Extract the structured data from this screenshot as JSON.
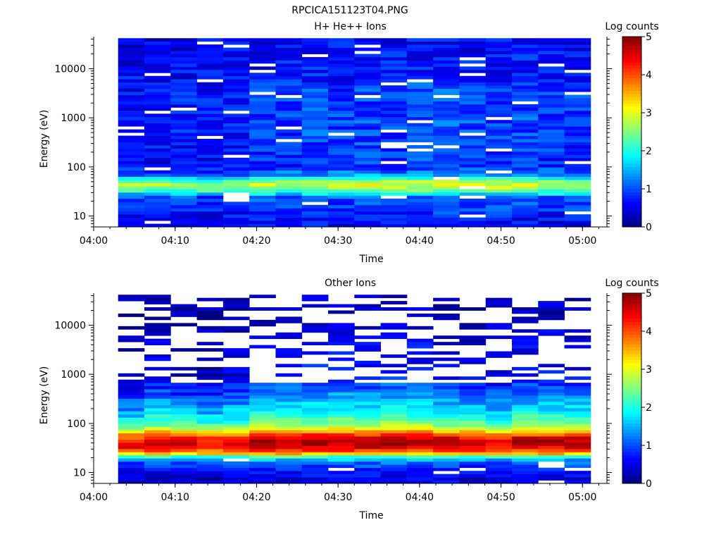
{
  "figure_title": "RPCICA151123T04.PNG",
  "chart_data": [
    {
      "type": "heatmap",
      "title": "H+ He++ Ions",
      "xlabel": "Time",
      "ylabel": "Energy (eV)",
      "yscale": "log",
      "ylim": [
        6,
        45000
      ],
      "xlim": [
        "04:00",
        "05:03"
      ],
      "x_ticks": [
        "04:00",
        "04:10",
        "04:20",
        "04:30",
        "04:40",
        "04:50",
        "05:00"
      ],
      "y_ticks": [
        "10",
        "100",
        "1000",
        "10000"
      ],
      "data_start": "04:03",
      "data_end": "05:01",
      "time_bins": 18,
      "energy_bins": 60,
      "colorbar": {
        "label": "Log counts",
        "min": 0,
        "max": 5,
        "ticks": [
          "0",
          "1",
          "2",
          "3",
          "4",
          "5"
        ]
      },
      "profile": [
        {
          "energy_eV": 8,
          "log_counts": 0.5
        },
        {
          "energy_eV": 15,
          "log_counts": 0.8
        },
        {
          "energy_eV": 25,
          "log_counts": 1.0
        },
        {
          "energy_eV": 30,
          "log_counts": 1.9
        },
        {
          "energy_eV": 40,
          "log_counts": 2.8
        },
        {
          "energy_eV": 50,
          "log_counts": 2.4
        },
        {
          "energy_eV": 65,
          "log_counts": 1.2
        },
        {
          "energy_eV": 100,
          "log_counts": 0.6
        },
        {
          "energy_eV": 1000,
          "log_counts": 0.7
        },
        {
          "energy_eV": 10000,
          "log_counts": 0.6
        },
        {
          "energy_eV": 40000,
          "log_counts": 0.5
        }
      ],
      "time_variation": [
        0.0,
        0.0,
        0.05,
        0.0,
        0.05,
        0.2,
        0.25,
        0.3,
        0.25,
        0.3,
        0.25,
        0.3,
        0.35,
        0.3,
        0.25,
        0.3,
        0.25,
        0.2
      ],
      "noise": 0.35,
      "empty_fraction": 0.04
    },
    {
      "type": "heatmap",
      "title": "Other Ions",
      "xlabel": "Time",
      "ylabel": "Energy (eV)",
      "yscale": "log",
      "ylim": [
        6,
        45000
      ],
      "xlim": [
        "04:00",
        "05:03"
      ],
      "x_ticks": [
        "04:00",
        "04:10",
        "04:20",
        "04:30",
        "04:40",
        "04:50",
        "05:00"
      ],
      "y_ticks": [
        "10",
        "100",
        "1000",
        "10000"
      ],
      "data_start": "04:03",
      "data_end": "05:01",
      "time_bins": 18,
      "energy_bins": 60,
      "colorbar": {
        "label": "Log counts",
        "min": 0,
        "max": 5,
        "ticks": [
          "0",
          "1",
          "2",
          "3",
          "4",
          "5"
        ]
      },
      "profile": [
        {
          "energy_eV": 8,
          "log_counts": 0.4
        },
        {
          "energy_eV": 15,
          "log_counts": 0.9
        },
        {
          "energy_eV": 20,
          "log_counts": 1.6
        },
        {
          "energy_eV": 25,
          "log_counts": 3.6
        },
        {
          "energy_eV": 35,
          "log_counts": 4.6
        },
        {
          "energy_eV": 50,
          "log_counts": 4.3
        },
        {
          "energy_eV": 70,
          "log_counts": 3.2
        },
        {
          "energy_eV": 100,
          "log_counts": 2.2
        },
        {
          "energy_eV": 200,
          "log_counts": 1.5
        },
        {
          "energy_eV": 500,
          "log_counts": 0.8
        },
        {
          "energy_eV": 1000,
          "log_counts": 0.4
        },
        {
          "energy_eV": 40000,
          "log_counts": 0.2
        }
      ],
      "time_variation": [
        -0.2,
        0.1,
        -0.1,
        -0.2,
        0.0,
        0.35,
        0.3,
        0.35,
        0.4,
        0.3,
        0.35,
        0.3,
        0.2,
        0.1,
        0.0,
        0.25,
        0.25,
        0.2
      ],
      "noise": 0.3,
      "empty_fraction_low": 0.06,
      "empty_fraction_high": 0.6
    }
  ]
}
